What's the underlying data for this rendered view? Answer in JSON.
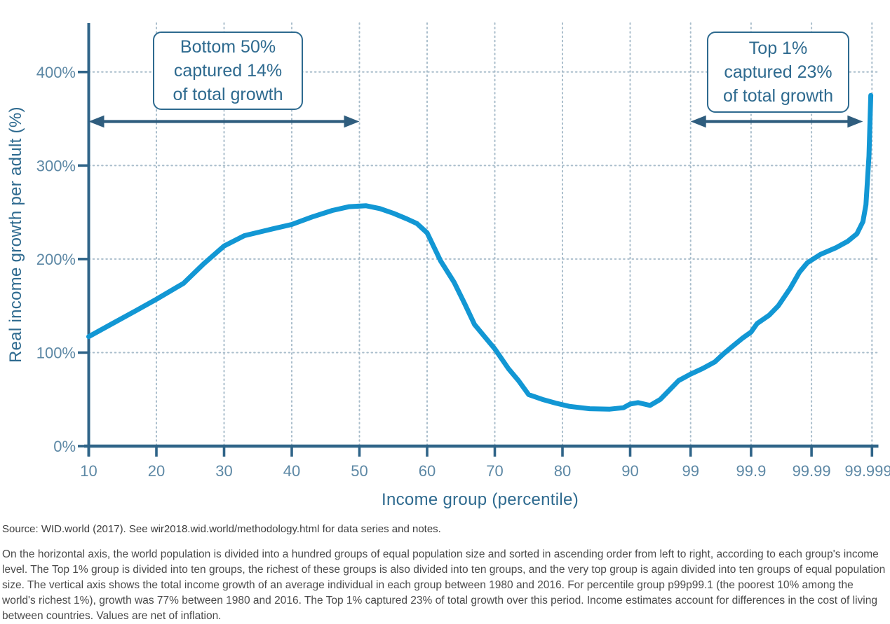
{
  "chart_data": {
    "type": "line",
    "title": "",
    "x_axis_label": "Income group (percentile)",
    "y_axis_label": "Real income growth per adult (%)",
    "x_tick_labels": [
      "10",
      "20",
      "30",
      "40",
      "50",
      "60",
      "70",
      "80",
      "90",
      "99",
      "99.9",
      "99.99",
      "99.999"
    ],
    "y_tick_labels": [
      "0%",
      "100%",
      "200%",
      "300%",
      "400%"
    ],
    "y_tick_values": [
      0,
      100,
      200,
      300,
      400
    ],
    "y_max_pct": 452,
    "grid": "dotted",
    "legend": "none",
    "x_scale_note": "Percentiles 10-90 linear; top of distribution expanded: equal-width segments 90-99, 99-99.9, 99.9-99.99, 99.99-99.999",
    "series": [
      {
        "name": "Global real income growth per adult, 1980-2016",
        "point_format": "[x_axis_units_0_to_12 (one unit per labelled tick interval), growth_percent]",
        "points": [
          [
            0,
            117
          ],
          [
            0.35,
            131
          ],
          [
            0.7,
            145
          ],
          [
            1,
            157
          ],
          [
            1.4,
            174
          ],
          [
            1.7,
            195
          ],
          [
            2,
            214
          ],
          [
            2.3,
            225
          ],
          [
            2.7,
            232
          ],
          [
            3,
            237
          ],
          [
            3.3,
            245
          ],
          [
            3.6,
            252
          ],
          [
            3.85,
            256
          ],
          [
            4.1,
            257
          ],
          [
            4.3,
            254
          ],
          [
            4.5,
            249
          ],
          [
            4.7,
            243
          ],
          [
            4.85,
            238
          ],
          [
            5,
            228
          ],
          [
            5.2,
            198
          ],
          [
            5.4,
            175
          ],
          [
            5.55,
            153
          ],
          [
            5.7,
            130
          ],
          [
            5.85,
            117
          ],
          [
            6,
            104
          ],
          [
            6.2,
            83
          ],
          [
            6.35,
            70
          ],
          [
            6.5,
            55
          ],
          [
            6.7,
            50
          ],
          [
            6.9,
            46
          ],
          [
            7.1,
            42.5
          ],
          [
            7.4,
            40
          ],
          [
            7.7,
            39.5
          ],
          [
            7.9,
            41
          ],
          [
            8,
            45
          ],
          [
            8.13,
            46.5
          ],
          [
            8.33,
            43.5
          ],
          [
            8.5,
            50
          ],
          [
            8.65,
            60
          ],
          [
            8.8,
            70
          ],
          [
            9,
            77
          ],
          [
            9.2,
            83
          ],
          [
            9.4,
            90
          ],
          [
            9.55,
            99
          ],
          [
            9.7,
            107
          ],
          [
            9.85,
            115
          ],
          [
            10,
            122
          ],
          [
            10.1,
            131
          ],
          [
            10.3,
            140
          ],
          [
            10.45,
            150
          ],
          [
            10.65,
            169
          ],
          [
            10.8,
            186
          ],
          [
            10.93,
            196
          ],
          [
            11.15,
            205
          ],
          [
            11.4,
            212
          ],
          [
            11.6,
            219
          ],
          [
            11.75,
            227
          ],
          [
            11.85,
            240
          ],
          [
            11.9,
            258
          ],
          [
            11.95,
            310
          ],
          [
            11.98,
            375
          ]
        ],
        "named_values": {
          "p10": "117%",
          "p20": "157%",
          "p30": "214%",
          "p40": "237%",
          "peak_around_p47_p51": "~257%",
          "p60": "228%",
          "p70": "104%",
          "trough_p80_p90": "~40%",
          "p99p99.1": "77%",
          "p99.9": "122%",
          "p99.99": "~196%",
          "top_group_p99.999": "~375%"
        }
      }
    ],
    "annotations": [
      {
        "text": "Bottom 50%\ncaptured 14%\nof total growth",
        "arrow_span_axis_units": [
          0,
          4
        ],
        "arrow_span_percentiles": "p10 to p50"
      },
      {
        "text": "Top 1%\ncaptured 23%\nof total growth",
        "arrow_span_axis_units": [
          9,
          11.85
        ],
        "arrow_span_percentiles": "p99 to p99.999"
      }
    ]
  },
  "footer": {
    "source": "Source: WID.world (2017). See wir2018.wid.world/methodology.html for data series and notes.",
    "note": "On the horizontal axis, the world population is divided into a hundred groups of equal population size and sorted in ascending order from left to right, according to each group's income level. The Top 1% group is divided into ten groups, the richest of these groups is also divided into ten groups, and the very top group is again divided into ten groups of equal population size. The vertical axis shows the total income growth of an average individual in each group between 1980 and 2016. For percentile group p99p99.1 (the poorest 10% among the world's richest 1%), growth was 77% between 1980 and 2016. The Top 1% captured 23% of total growth over this period. Income estimates account for differences in the cost of living between countries. Values are net of inflation."
  },
  "colors": {
    "curve": "#1297d4",
    "axis": "#2f6488",
    "arrow": "#2f5d7e",
    "grid_dots": "#a9bdcb",
    "tick_label": "#5d88a5",
    "axis_title": "#2e6a8f",
    "annotation": "#2e6a8f",
    "source_text": "#3d3d3d",
    "note_text": "#4a4a4a"
  }
}
